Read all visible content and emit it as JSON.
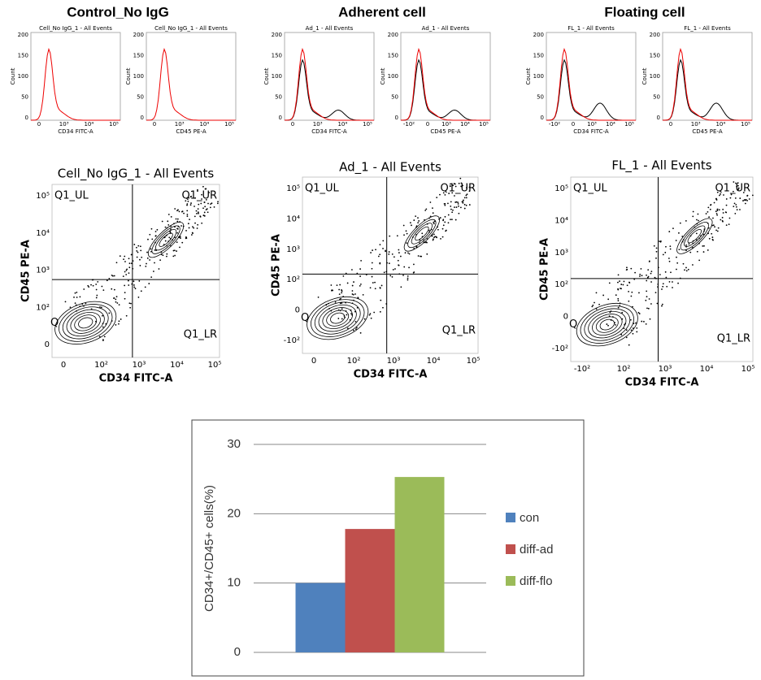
{
  "panels": [
    {
      "title": "Control_No IgG",
      "histograms": [
        {
          "title": "Cell_No IgG_1 - All Events",
          "ylabel": "Count",
          "xlabel": "CD34 FITC-A",
          "yticks": [
            "200",
            "150",
            "100",
            "50",
            "0"
          ],
          "xticks": [
            "0",
            "10³",
            "10⁴",
            "10⁵"
          ]
        },
        {
          "title": "Cell_No IgG_1 - All Events",
          "ylabel": "Count",
          "xlabel": "CD45 PE-A",
          "yticks": [
            "200",
            "150",
            "100",
            "50",
            "0"
          ],
          "xticks": [
            "0",
            "10³",
            "10⁴",
            "10⁵"
          ]
        }
      ],
      "contour": {
        "title": "Cell_No IgG_1 - All Events",
        "xlabel": "CD34 FITC-A",
        "ylabel": "CD45 PE-A",
        "quadrants": [
          "Q1_UL",
          "Q1_UR",
          "Q1_LR",
          "Q"
        ],
        "xticks": [
          "0",
          "10²",
          "10³",
          "10⁴",
          "10⁵"
        ],
        "yticks": [
          "10⁵",
          "10⁴",
          "10³",
          "10²",
          "0"
        ]
      }
    },
    {
      "title": "Adherent cell",
      "histograms": [
        {
          "title": "Ad_1 - All Events",
          "ylabel": "Count",
          "xlabel": "CD34 FITC-A",
          "yticks": [
            "200",
            "150",
            "100",
            "50",
            "0"
          ],
          "xticks": [
            "0",
            "10³",
            "10⁴",
            "10⁵"
          ]
        },
        {
          "title": "Ad_1 - All Events",
          "ylabel": "Count",
          "xlabel": "CD45 PE-A",
          "yticks": [
            "200",
            "150",
            "100",
            "50",
            "0"
          ],
          "xticks": [
            "-10²",
            "0",
            "10³",
            "10⁴",
            "10⁵"
          ]
        }
      ],
      "contour": {
        "title": "Ad_1 - All Events",
        "xlabel": "CD34 FITC-A",
        "ylabel": "CD45 PE-A",
        "quadrants": [
          "Q1_UL",
          "Q1_UR",
          "Q1_LR",
          "Q"
        ],
        "xticks": [
          "0",
          "10²",
          "10³",
          "10⁴",
          "10⁵"
        ],
        "yticks": [
          "10⁵",
          "10⁴",
          "10³",
          "10²",
          "0",
          "-10²"
        ]
      }
    },
    {
      "title": "Floating cell",
      "histograms": [
        {
          "title": "FL_1 - All Events",
          "ylabel": "Count",
          "xlabel": "CD34 FITC-A",
          "yticks": [
            "200",
            "150",
            "100",
            "50",
            "0"
          ],
          "xticks": [
            "-10²",
            "0",
            "10³",
            "10⁴",
            "10⁵"
          ]
        },
        {
          "title": "FL_1 - All Events",
          "ylabel": "Count",
          "xlabel": "CD45 PE-A",
          "yticks": [
            "200",
            "150",
            "100",
            "50",
            "0"
          ],
          "xticks": [
            "0",
            "10³",
            "10⁴",
            "10⁵"
          ]
        }
      ],
      "contour": {
        "title": "FL_1 - All Events",
        "xlabel": "CD34 FITC-A",
        "ylabel": "CD45 PE-A",
        "quadrants": [
          "Q1_UL",
          "Q1_UR",
          "Q1_LR",
          "Q"
        ],
        "xticks": [
          "-10²",
          "10²",
          "10³",
          "10⁴",
          "10⁵"
        ],
        "yticks": [
          "10⁵",
          "10⁴",
          "10³",
          "10²",
          "0",
          "-10²"
        ]
      }
    }
  ],
  "chart_data": {
    "type": "bar",
    "ylabel": "CD34+/CD45+ cells(%)",
    "categories": [
      null
    ],
    "series": [
      {
        "name": "con",
        "color": "#4f81bd",
        "values": [
          10
        ]
      },
      {
        "name": "diff-ad",
        "color": "#c0504d",
        "values": [
          17.8
        ]
      },
      {
        "name": "diff-flo",
        "color": "#9bbb59",
        "values": [
          25.3
        ]
      }
    ],
    "ylim": [
      0,
      30
    ],
    "yticks": [
      0,
      10,
      20,
      30
    ],
    "grid": true
  }
}
